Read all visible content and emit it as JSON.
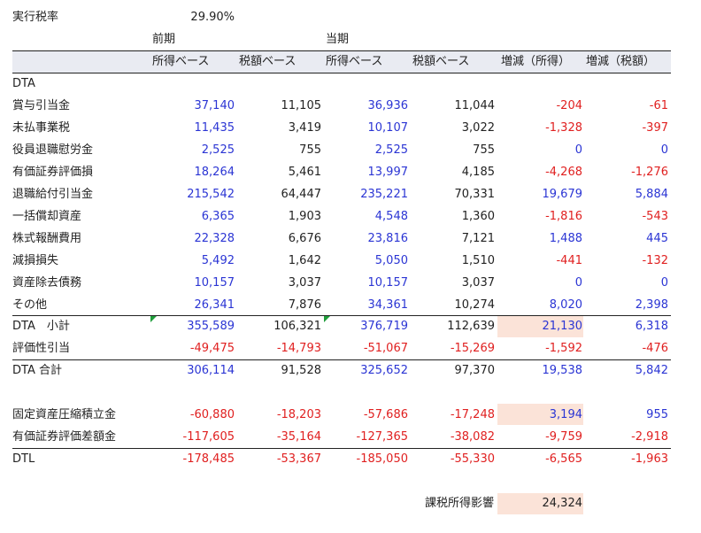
{
  "top": {
    "rate_label": "実行税率",
    "rate_value": "29.90%",
    "prev_label": "前期",
    "curr_label": "当期"
  },
  "columns": [
    "所得ベース",
    "税額ベース",
    "所得ベース",
    "税額ベース",
    "増減（所得）",
    "増減（税額）"
  ],
  "section_label": "DTA",
  "rows": [
    {
      "label": "賞与引当金",
      "values": [
        "37,140",
        "11,105",
        "36,936",
        "11,044",
        "-204",
        "-61"
      ]
    },
    {
      "label": "未払事業税",
      "values": [
        "11,435",
        "3,419",
        "10,107",
        "3,022",
        "-1,328",
        "-397"
      ]
    },
    {
      "label": "役員退職慰労金",
      "values": [
        "2,525",
        "755",
        "2,525",
        "755",
        "0",
        "0"
      ]
    },
    {
      "label": "有価証券評価損",
      "values": [
        "18,264",
        "5,461",
        "13,997",
        "4,185",
        "-4,268",
        "-1,276"
      ]
    },
    {
      "label": "退職給付引当金",
      "values": [
        "215,542",
        "64,447",
        "235,221",
        "70,331",
        "19,679",
        "5,884"
      ]
    },
    {
      "label": "一括償却資産",
      "values": [
        "6,365",
        "1,903",
        "4,548",
        "1,360",
        "-1,816",
        "-543"
      ]
    },
    {
      "label": "株式報酬費用",
      "values": [
        "22,328",
        "6,676",
        "23,816",
        "7,121",
        "1,488",
        "445"
      ]
    },
    {
      "label": "減損損失",
      "values": [
        "5,492",
        "1,642",
        "5,050",
        "1,510",
        "-441",
        "-132"
      ]
    },
    {
      "label": "資産除去債務",
      "values": [
        "10,157",
        "3,037",
        "10,157",
        "3,037",
        "0",
        "0"
      ]
    },
    {
      "label": "その他",
      "values": [
        "26,341",
        "7,876",
        "34,361",
        "10,274",
        "8,020",
        "2,398"
      ]
    },
    {
      "label": "DTA　小計",
      "values": [
        "355,589",
        "106,321",
        "376,719",
        "112,639",
        "21,130",
        "6,318"
      ]
    },
    {
      "label": "評価性引当",
      "values": [
        "-49,475",
        "-14,793",
        "-51,067",
        "-15,269",
        "-1,592",
        "-476"
      ]
    },
    {
      "label": "DTA 合計",
      "values": [
        "306,114",
        "91,528",
        "325,652",
        "97,370",
        "19,538",
        "5,842"
      ]
    },
    {
      "label": "固定資産圧縮積立金",
      "values": [
        "-60,880",
        "-18,203",
        "-57,686",
        "-17,248",
        "3,194",
        "955"
      ]
    },
    {
      "label": "有価証券評価差額金",
      "values": [
        "-117,605",
        "-35,164",
        "-127,365",
        "-38,082",
        "-9,759",
        "-2,918"
      ]
    },
    {
      "label": "DTL",
      "values": [
        "-178,485",
        "-53,367",
        "-185,050",
        "-55,330",
        "-6,565",
        "-1,963"
      ]
    }
  ],
  "summary": {
    "label": "課税所得影響",
    "value": "24,324"
  },
  "colors": {
    "positive": "#2b35d4",
    "negative": "#e02020",
    "plain": "#222222",
    "highlight": "#fbe3d8",
    "header_band": "#e9ebf2",
    "comment_marker": "#1f9d3a"
  }
}
